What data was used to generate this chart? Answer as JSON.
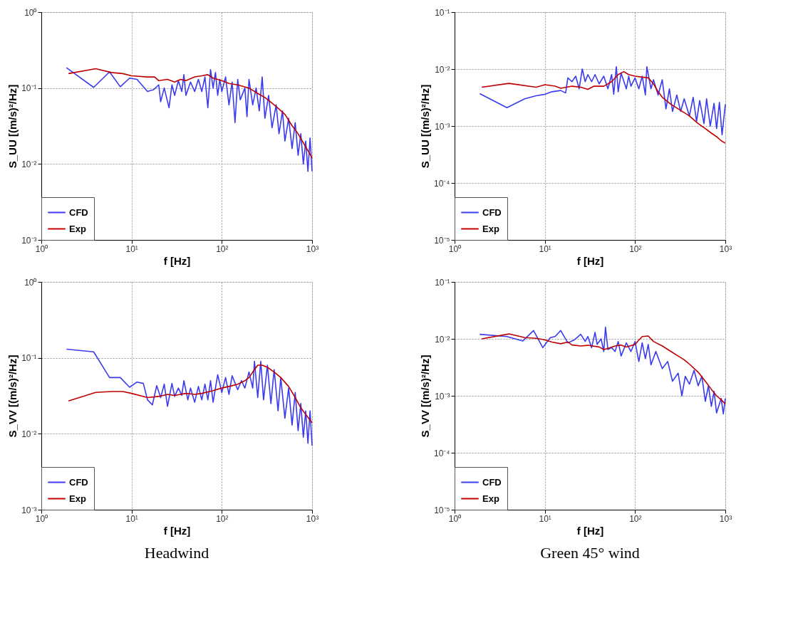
{
  "chart_data": [
    {
      "type": "line",
      "xlabel": "f [Hz]",
      "ylabel": "S_UU [(m/s)²/Hz]",
      "log": "xy",
      "grid": true,
      "legend": "bottom left",
      "xlim": [
        1,
        1000
      ],
      "xticks": [
        {
          "value": 1,
          "label": "10⁰"
        },
        {
          "value": 10,
          "label": "10¹"
        },
        {
          "value": 100,
          "label": "10²"
        },
        {
          "value": 1000,
          "label": "10³"
        }
      ],
      "ylim": [
        0.001,
        1
      ],
      "yticks": [
        {
          "value": 0.001,
          "label": "10⁻³"
        },
        {
          "value": 0.01,
          "label": "10⁻²"
        },
        {
          "value": 0.1,
          "label": "10⁻¹"
        },
        {
          "value": 1,
          "label": "10⁰"
        }
      ],
      "series": [
        {
          "name": "CFD",
          "color": "#3a3af0",
          "x": [
            1.9,
            3.8,
            5.7,
            7.5,
            9.5,
            11.5,
            15,
            17.5,
            20,
            21,
            23,
            26,
            28,
            30,
            33,
            36,
            38,
            40,
            45,
            50,
            55,
            60,
            65,
            70,
            75,
            80,
            85,
            90,
            95,
            100,
            110,
            120,
            130,
            140,
            150,
            160,
            180,
            190,
            200,
            220,
            240,
            260,
            280,
            300,
            330,
            360,
            400,
            430,
            470,
            500,
            550,
            600,
            650,
            700,
            750,
            800,
            850,
            900,
            950,
            1000
          ],
          "values": [
            0.185,
            0.102,
            0.163,
            0.104,
            0.135,
            0.13,
            0.09,
            0.095,
            0.11,
            0.066,
            0.1,
            0.055,
            0.11,
            0.08,
            0.125,
            0.09,
            0.15,
            0.08,
            0.12,
            0.09,
            0.13,
            0.09,
            0.14,
            0.055,
            0.175,
            0.1,
            0.16,
            0.08,
            0.13,
            0.09,
            0.14,
            0.06,
            0.12,
            0.035,
            0.13,
            0.07,
            0.1,
            0.042,
            0.13,
            0.06,
            0.1,
            0.05,
            0.14,
            0.04,
            0.08,
            0.03,
            0.06,
            0.025,
            0.05,
            0.02,
            0.04,
            0.016,
            0.035,
            0.013,
            0.025,
            0.01,
            0.02,
            0.008,
            0.022,
            0.008
          ]
        },
        {
          "name": "Exp",
          "color": "#c00000",
          "x": [
            2,
            4,
            6,
            8,
            10,
            15,
            18,
            20,
            25,
            30,
            35,
            40,
            50,
            60,
            70,
            80,
            100,
            120,
            150,
            200,
            250,
            300,
            350,
            400,
            500,
            600,
            700,
            800,
            900,
            1000
          ],
          "values": [
            0.155,
            0.18,
            0.16,
            0.155,
            0.145,
            0.14,
            0.14,
            0.125,
            0.13,
            0.12,
            0.13,
            0.125,
            0.14,
            0.145,
            0.15,
            0.135,
            0.125,
            0.115,
            0.11,
            0.1,
            0.085,
            0.075,
            0.065,
            0.057,
            0.045,
            0.032,
            0.025,
            0.019,
            0.015,
            0.012
          ]
        }
      ]
    },
    {
      "type": "line",
      "xlabel": "f [Hz]",
      "ylabel": "S_UU [(m/s)²/Hz]",
      "log": "xy",
      "grid": true,
      "legend": "bottom left",
      "xlim": [
        1,
        1000
      ],
      "xticks": [
        {
          "value": 1,
          "label": "10⁰"
        },
        {
          "value": 10,
          "label": "10¹"
        },
        {
          "value": 100,
          "label": "10²"
        },
        {
          "value": 1000,
          "label": "10³"
        }
      ],
      "ylim": [
        1e-05,
        0.1
      ],
      "yticks": [
        {
          "value": 1e-05,
          "label": "10⁻⁵"
        },
        {
          "value": 0.0001,
          "label": "10⁻⁴"
        },
        {
          "value": 0.001,
          "label": "10⁻³"
        },
        {
          "value": 0.01,
          "label": "10⁻²"
        },
        {
          "value": 0.1,
          "label": "10⁻¹"
        }
      ],
      "series": [
        {
          "name": "CFD",
          "color": "#3a3af0",
          "x": [
            1.9,
            3.8,
            6,
            8,
            10,
            12,
            15,
            17,
            18,
            20,
            22,
            24,
            26,
            28,
            30,
            33,
            36,
            40,
            45,
            50,
            55,
            58,
            62,
            65,
            70,
            80,
            85,
            90,
            100,
            110,
            120,
            130,
            135,
            150,
            160,
            180,
            200,
            220,
            240,
            260,
            290,
            320,
            350,
            400,
            440,
            480,
            520,
            580,
            620,
            680,
            750,
            800,
            860,
            920,
            1000
          ],
          "values": [
            0.0037,
            0.0021,
            0.003,
            0.0034,
            0.0036,
            0.004,
            0.0042,
            0.0038,
            0.007,
            0.006,
            0.0075,
            0.0045,
            0.01,
            0.006,
            0.008,
            0.006,
            0.008,
            0.0055,
            0.0075,
            0.0045,
            0.008,
            0.0036,
            0.011,
            0.004,
            0.0085,
            0.0045,
            0.0075,
            0.005,
            0.007,
            0.0045,
            0.0075,
            0.0035,
            0.011,
            0.0045,
            0.0065,
            0.0035,
            0.0065,
            0.002,
            0.0045,
            0.0018,
            0.0035,
            0.0018,
            0.003,
            0.0015,
            0.0032,
            0.0012,
            0.0028,
            0.0011,
            0.003,
            0.001,
            0.0025,
            0.0009,
            0.0026,
            0.0007,
            0.0024
          ]
        },
        {
          "name": "Exp",
          "color": "#c00000",
          "x": [
            2,
            4,
            8,
            10,
            13,
            15,
            20,
            25,
            30,
            35,
            45,
            55,
            65,
            75,
            85,
            100,
            120,
            140,
            160,
            180,
            200,
            250,
            300,
            400,
            500,
            600,
            700,
            800,
            900,
            1000
          ],
          "values": [
            0.0048,
            0.0056,
            0.0048,
            0.0053,
            0.005,
            0.0046,
            0.005,
            0.0048,
            0.0044,
            0.005,
            0.005,
            0.006,
            0.008,
            0.009,
            0.008,
            0.0075,
            0.0072,
            0.007,
            0.0055,
            0.004,
            0.0032,
            0.0024,
            0.002,
            0.0015,
            0.0011,
            0.0009,
            0.00075,
            0.00065,
            0.00055,
            0.0005
          ]
        }
      ]
    },
    {
      "type": "line",
      "xlabel": "f [Hz]",
      "ylabel": "S_VV [(m/s)²/Hz]",
      "log": "xy",
      "grid": true,
      "legend": "bottom left",
      "annotations": [
        "Headwind"
      ],
      "xlim": [
        1,
        1000
      ],
      "xticks": [
        {
          "value": 1,
          "label": "10⁰"
        },
        {
          "value": 10,
          "label": "10¹"
        },
        {
          "value": 100,
          "label": "10²"
        },
        {
          "value": 1000,
          "label": "10³"
        }
      ],
      "ylim": [
        0.001,
        1
      ],
      "yticks": [
        {
          "value": 0.001,
          "label": "10⁻³"
        },
        {
          "value": 0.01,
          "label": "10⁻²"
        },
        {
          "value": 0.1,
          "label": "10⁻¹"
        },
        {
          "value": 1,
          "label": "10⁰"
        }
      ],
      "series": [
        {
          "name": "CFD",
          "color": "#3a3af0",
          "x": [
            1.9,
            3.8,
            5.7,
            7.5,
            9.5,
            11.5,
            13.5,
            15,
            17,
            19,
            21,
            23,
            25,
            28,
            30,
            33,
            36,
            38,
            42,
            45,
            50,
            55,
            60,
            65,
            70,
            75,
            80,
            90,
            100,
            110,
            120,
            130,
            150,
            165,
            180,
            200,
            220,
            230,
            250,
            270,
            290,
            320,
            350,
            380,
            420,
            450,
            500,
            550,
            600,
            650,
            700,
            750,
            800,
            850,
            900,
            950,
            1000
          ],
          "values": [
            0.13,
            0.12,
            0.055,
            0.055,
            0.041,
            0.048,
            0.046,
            0.028,
            0.024,
            0.043,
            0.03,
            0.045,
            0.023,
            0.046,
            0.031,
            0.04,
            0.032,
            0.05,
            0.028,
            0.04,
            0.026,
            0.042,
            0.028,
            0.045,
            0.028,
            0.05,
            0.026,
            0.06,
            0.035,
            0.055,
            0.033,
            0.058,
            0.038,
            0.05,
            0.04,
            0.065,
            0.04,
            0.09,
            0.03,
            0.09,
            0.028,
            0.08,
            0.025,
            0.07,
            0.02,
            0.055,
            0.016,
            0.04,
            0.013,
            0.035,
            0.011,
            0.025,
            0.009,
            0.02,
            0.0075,
            0.02,
            0.007
          ]
        },
        {
          "name": "Exp",
          "color": "#c00000",
          "x": [
            2,
            4,
            6,
            8,
            10,
            15,
            20,
            25,
            30,
            40,
            50,
            60,
            80,
            100,
            120,
            150,
            180,
            200,
            230,
            250,
            280,
            320,
            380,
            450,
            550,
            650,
            750,
            850,
            1000
          ],
          "values": [
            0.027,
            0.035,
            0.036,
            0.036,
            0.034,
            0.03,
            0.031,
            0.033,
            0.032,
            0.034,
            0.033,
            0.034,
            0.037,
            0.04,
            0.042,
            0.045,
            0.05,
            0.055,
            0.07,
            0.08,
            0.08,
            0.075,
            0.065,
            0.055,
            0.042,
            0.03,
            0.022,
            0.018,
            0.014
          ]
        }
      ]
    },
    {
      "type": "line",
      "xlabel": "f [Hz]",
      "ylabel": "S_VV [(m/s)²/Hz]",
      "log": "xy",
      "grid": true,
      "legend": "bottom left",
      "annotations": [
        "Green 45° wind"
      ],
      "xlim": [
        1,
        1000
      ],
      "xticks": [
        {
          "value": 1,
          "label": "10⁰"
        },
        {
          "value": 10,
          "label": "10¹"
        },
        {
          "value": 100,
          "label": "10²"
        },
        {
          "value": 1000,
          "label": "10³"
        }
      ],
      "ylim": [
        1e-05,
        0.1
      ],
      "yticks": [
        {
          "value": 1e-05,
          "label": "10⁻⁵"
        },
        {
          "value": 0.0001,
          "label": "10⁻⁴"
        },
        {
          "value": 0.001,
          "label": "10⁻³"
        },
        {
          "value": 0.01,
          "label": "10⁻²"
        },
        {
          "value": 0.1,
          "label": "10⁻¹"
        }
      ],
      "series": [
        {
          "name": "CFD",
          "color": "#3a3af0",
          "x": [
            1.9,
            3.8,
            5.7,
            7.5,
            9.5,
            11.5,
            13,
            15,
            18,
            21,
            25,
            28,
            30,
            33,
            36,
            38,
            42,
            45,
            47,
            50,
            55,
            60,
            65,
            70,
            80,
            90,
            100,
            110,
            120,
            130,
            140,
            150,
            170,
            200,
            230,
            260,
            300,
            330,
            360,
            400,
            450,
            500,
            550,
            600,
            650,
            700,
            750,
            800,
            900,
            950,
            1000
          ],
          "values": [
            0.012,
            0.011,
            0.0092,
            0.014,
            0.007,
            0.0105,
            0.011,
            0.014,
            0.0085,
            0.0095,
            0.012,
            0.009,
            0.011,
            0.007,
            0.013,
            0.008,
            0.01,
            0.006,
            0.016,
            0.0065,
            0.007,
            0.006,
            0.009,
            0.005,
            0.0085,
            0.006,
            0.009,
            0.004,
            0.0085,
            0.0045,
            0.008,
            0.0035,
            0.006,
            0.003,
            0.004,
            0.0018,
            0.0025,
            0.001,
            0.0022,
            0.0016,
            0.0028,
            0.0015,
            0.0022,
            0.0008,
            0.0015,
            0.00065,
            0.0012,
            0.0005,
            0.0009,
            0.00048,
            0.0009
          ]
        },
        {
          "name": "Exp",
          "color": "#c00000",
          "x": [
            2,
            4,
            6,
            8,
            10,
            12,
            15,
            18,
            20,
            25,
            30,
            40,
            45,
            50,
            60,
            70,
            80,
            100,
            110,
            120,
            140,
            160,
            200,
            250,
            300,
            350,
            400,
            500,
            600,
            700,
            800,
            900,
            1000
          ],
          "values": [
            0.01,
            0.0122,
            0.0105,
            0.0102,
            0.0096,
            0.0088,
            0.0082,
            0.0088,
            0.0078,
            0.0075,
            0.0077,
            0.0072,
            0.0065,
            0.0068,
            0.0075,
            0.0078,
            0.0072,
            0.008,
            0.0095,
            0.011,
            0.0112,
            0.009,
            0.0075,
            0.006,
            0.005,
            0.0043,
            0.0036,
            0.0026,
            0.0018,
            0.0013,
            0.001,
            0.00085,
            0.00072
          ]
        }
      ]
    }
  ]
}
